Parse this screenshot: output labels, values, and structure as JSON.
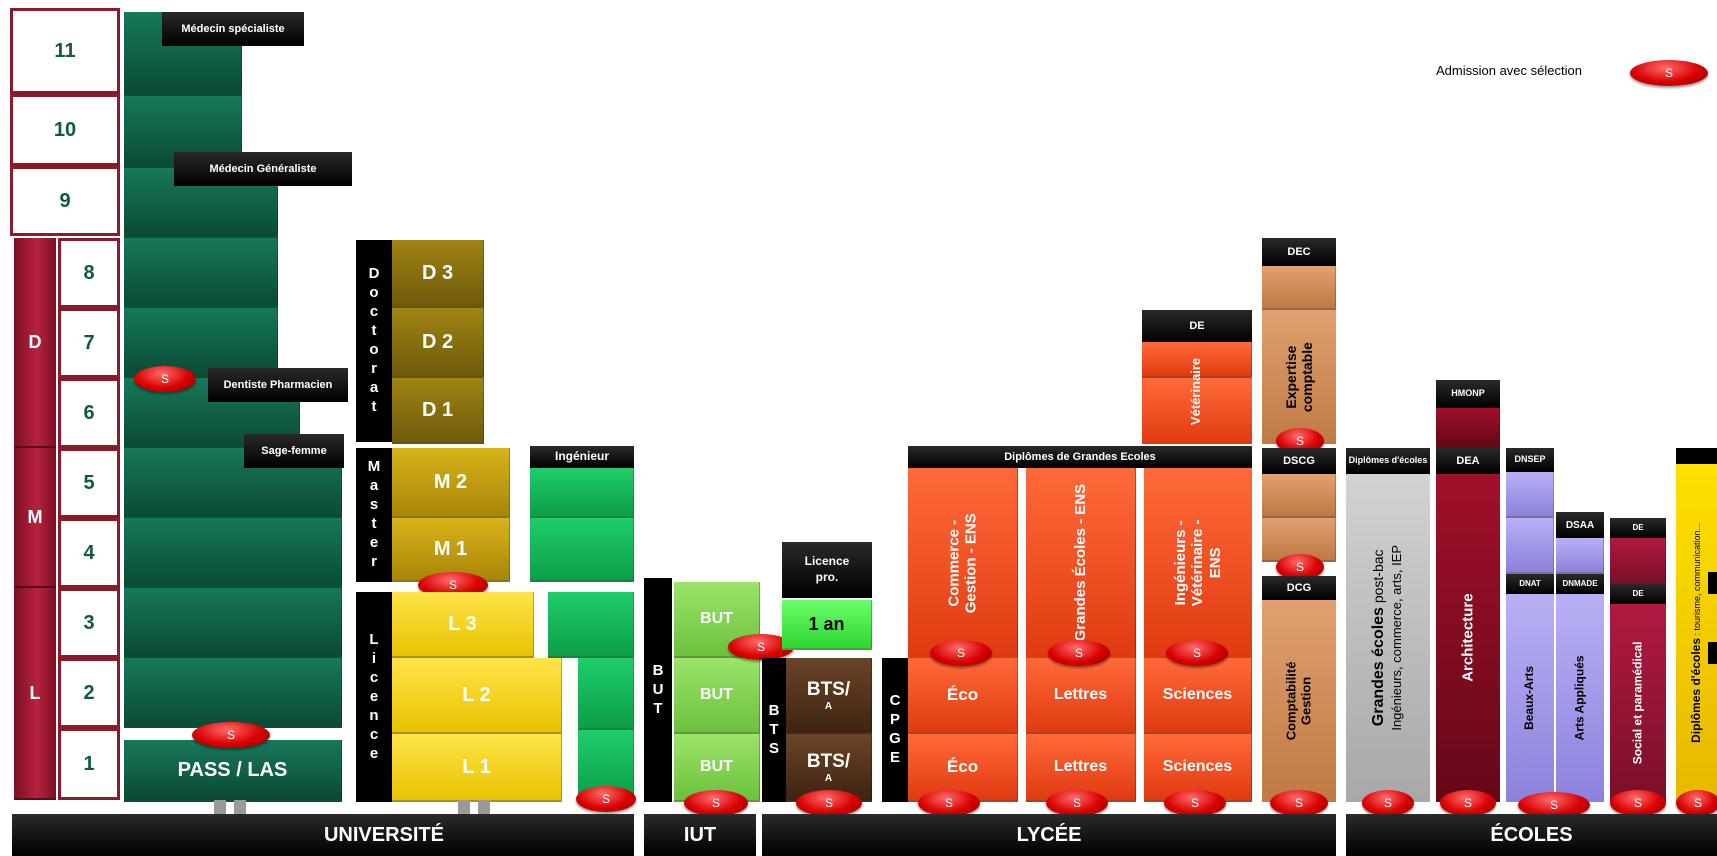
{
  "years": [
    "11",
    "10",
    "9",
    "8",
    "7",
    "6",
    "5",
    "4",
    "3",
    "2",
    "1"
  ],
  "lmd": {
    "d": "D",
    "m": "M",
    "l": "L"
  },
  "legend": {
    "text": "Admission avec sélection",
    "badge": "S"
  },
  "sante": {
    "medecin_specialiste": "Médecin spécialiste",
    "medecin_generaliste": "Médecin Généraliste",
    "dentiste_pharmacien": "Dentiste Pharmacien",
    "sage_femme": "Sage-femme",
    "pass_las": "PASS / LAS"
  },
  "univ": {
    "doctorat": "Doctorat",
    "master": "Master",
    "licence": "Licence",
    "d3": "D 3",
    "d2": "D 2",
    "d1": "D 1",
    "m2": "M 2",
    "m1": "M 1",
    "l3": "L 3",
    "l2": "L 2",
    "l1": "L 1",
    "ingenieur": "Ingénieur"
  },
  "iut": {
    "but_label": "BUT",
    "but3": "BUT",
    "but2": "BUT",
    "but1": "BUT"
  },
  "lycee": {
    "licence_pro": "Licence pro.",
    "un_an": "1 an",
    "bts_label": "BTS",
    "bts2_main": "BTS/",
    "bts2_sub": "A",
    "bts1_main": "BTS/",
    "bts1_sub": "A",
    "cpge": "CPGE",
    "dge": "Diplômes de Grandes Ecoles",
    "commerce": "Commerce - Gestion - ENS",
    "grandes_ecoles": "Grandes Écoles - ENS",
    "ingenieurs": "Ingénieurs - Vétérinaire - ENS",
    "eco2": "Éco",
    "eco1": "Éco",
    "lettres2": "Lettres",
    "lettres1": "Lettres",
    "sciences2": "Sciences",
    "sciences1": "Sciences",
    "de": "DE",
    "veterinaire": "Vétérinaire",
    "dec": "DEC",
    "expertise": "Expertise comptable",
    "dscg": "DSCG",
    "dcg": "DCG",
    "comptabilite": "Comptabilité Gestion"
  },
  "ecoles": {
    "diplomes_ecoles": "Diplômes d'écoles",
    "grandes_ecoles_bold": "Grandes écoles",
    "grandes_ecoles_rest": " post-bac",
    "grandes_ecoles_sub": "Ingénieurs, commerce, arts, IEP",
    "hmonp": "HMONP",
    "dea": "DEA",
    "architecture": "Architecture",
    "dnsep": "DNSEP",
    "dsaa": "DSAA",
    "dnat": "DNAT",
    "dnmade": "DNMADE",
    "beaux_arts": "Beaux-Arts",
    "arts_appliques": "Arts Appliqués",
    "de_top": "DE",
    "de_mid": "DE",
    "social": "Social et paramédical",
    "diplomes_bold": "Diplômes d'écoles",
    "diplomes_rest": " : tourisme, communication..."
  },
  "badge": "S",
  "bottom": {
    "universite": "UNIVERSITÉ",
    "iut": "IUT",
    "lycee": "LYCÉE",
    "ecoles": "ÉCOLES"
  },
  "colors": {
    "frame": "#8b1a2b",
    "green": "#0f5c3a",
    "badge": "#d90000"
  }
}
